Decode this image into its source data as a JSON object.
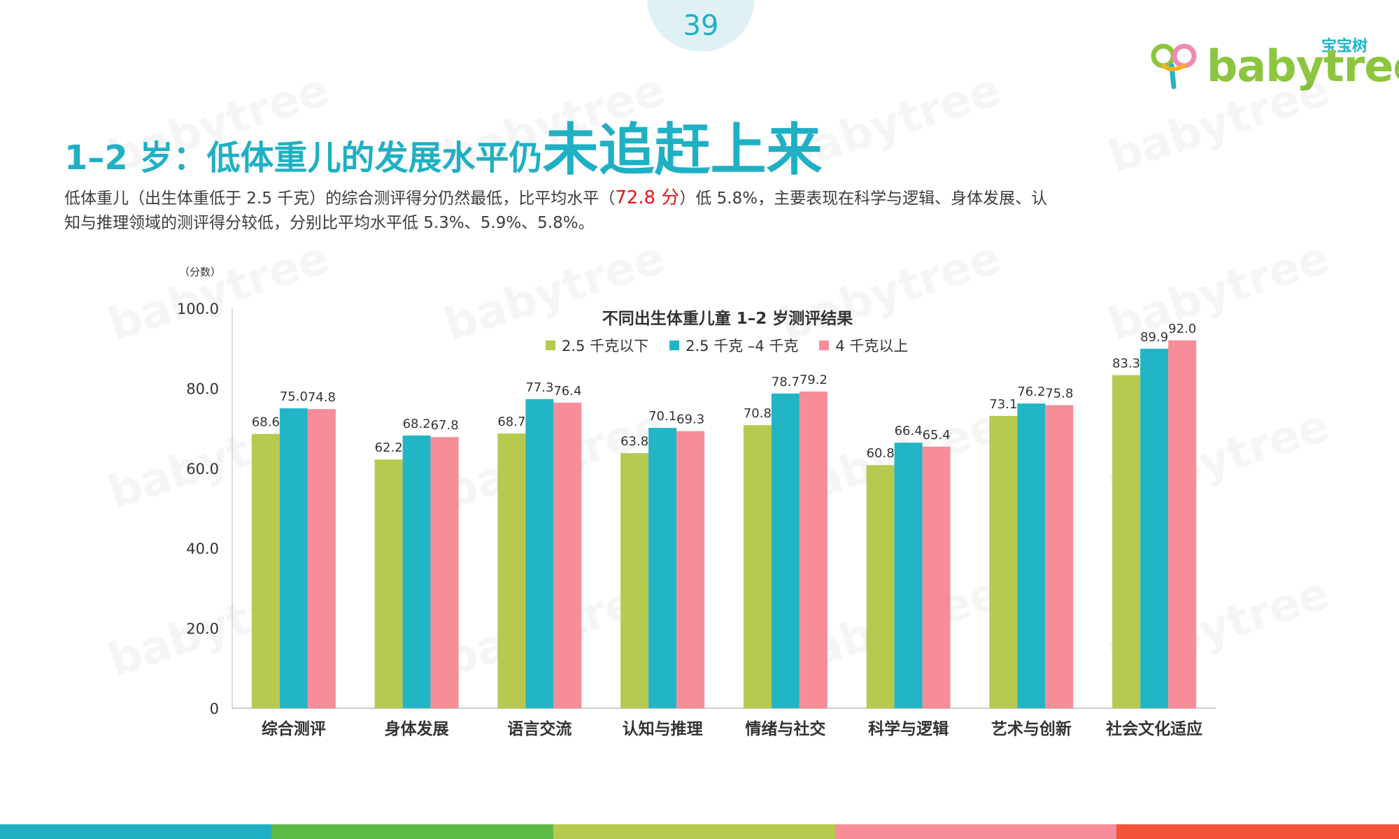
{
  "page": {
    "number": "39"
  },
  "logo": {
    "cn": "宝宝树",
    "en": "babytree"
  },
  "title": {
    "part1": "1–2 岁：低体重儿的发展水平仍",
    "part2": "未追赶上来"
  },
  "description": {
    "before": "低体重儿（出生体重低于 2.5 千克）的综合测评得分仍然最低，比平均水平（",
    "highlight": "72.8 分",
    "after": "）低 5.8%，主要表现在科学与逻辑、身体发展、认知与推理领域的测评得分较低，分别比平均水平低 5.3%、5.9%、5.8%。"
  },
  "watermark": {
    "text": "babytree"
  },
  "chart_data": {
    "type": "bar",
    "title": "不同出生体重儿童 1–2 岁测评结果",
    "yunit": "（分数）",
    "ylim": [
      0,
      100
    ],
    "yticks": [
      "0",
      "20.0",
      "40.0",
      "60.0",
      "80.0",
      "100.0"
    ],
    "categories": [
      "综合测评",
      "身体发展",
      "语言交流",
      "认知与推理",
      "情绪与社交",
      "科学与逻辑",
      "艺术与创新",
      "社会文化适应"
    ],
    "series": [
      {
        "name": "2.5 千克以下",
        "color": "#b8c94f",
        "values": [
          68.6,
          62.2,
          68.7,
          63.8,
          70.8,
          60.8,
          73.1,
          83.3
        ]
      },
      {
        "name": "2.5 千克 –4 千克",
        "color": "#21b5c6",
        "values": [
          75.0,
          68.2,
          77.3,
          70.1,
          78.7,
          66.4,
          76.2,
          89.9
        ]
      },
      {
        "name": "4 千克以上",
        "color": "#f78d99",
        "values": [
          74.8,
          67.8,
          76.4,
          69.3,
          79.2,
          65.4,
          75.8,
          92.0
        ]
      }
    ],
    "grid": false,
    "legend": "top-center"
  },
  "colors": {
    "accent": "#1fb0c4",
    "highlight": "#e8151a",
    "bottom_bar": [
      "#1fb0c4",
      "#5cba47",
      "#b8c94f",
      "#f78d99",
      "#f4553a"
    ]
  }
}
